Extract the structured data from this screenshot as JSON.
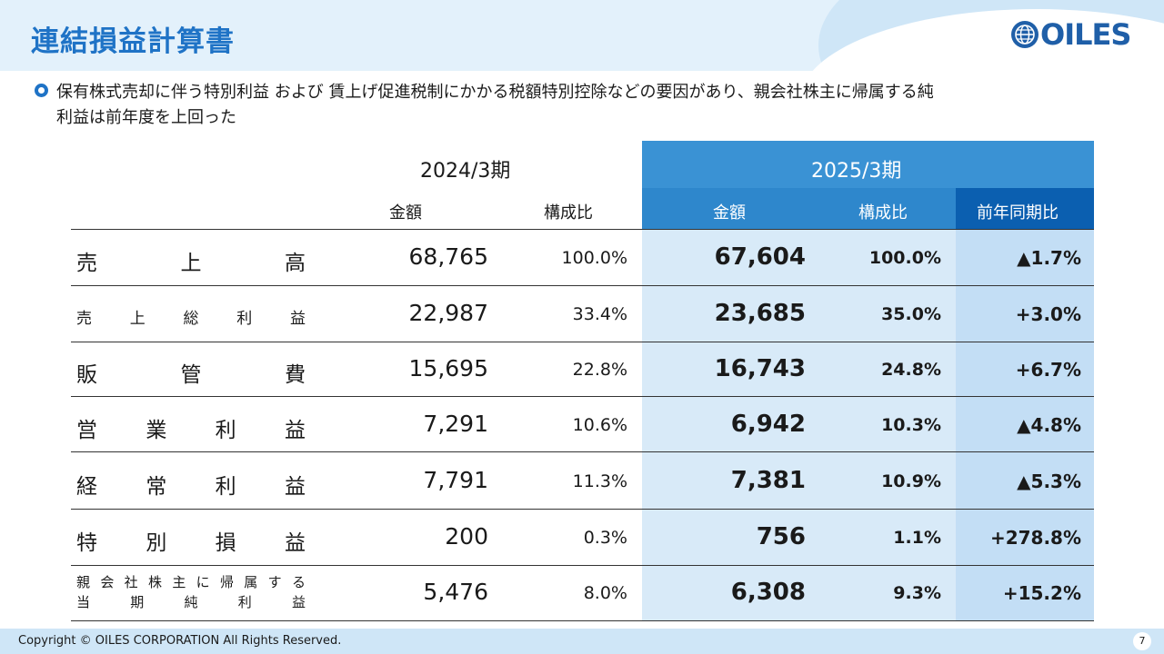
{
  "header": {
    "title": "連結損益計算書",
    "logo_text": "OILES"
  },
  "summary": {
    "line1": "保有株式売却に伴う特別利益 および 賃上げ促進税制にかかる税額特別控除などの要因があり、親会社株主に帰属する純",
    "line2": "利益は前年度を上回った"
  },
  "table": {
    "year_prev": "2024/3期",
    "year_curr": "2025/3期",
    "col_amount": "金額",
    "col_ratio": "構成比",
    "col_yoy": "前年同期比",
    "rows": [
      {
        "label_chars": [
          "売",
          "上",
          "高"
        ],
        "prev_amount": "68,765",
        "prev_ratio": "100.0%",
        "curr_amount": "67,604",
        "curr_ratio": "100.0%",
        "yoy": "▲1.7%"
      },
      {
        "label_chars": [
          "売",
          "上",
          "総",
          "利",
          "益"
        ],
        "prev_amount": "22,987",
        "prev_ratio": "33.4%",
        "curr_amount": "23,685",
        "curr_ratio": "35.0%",
        "yoy": "+3.0%"
      },
      {
        "label_chars": [
          "販",
          "管",
          "費"
        ],
        "prev_amount": "15,695",
        "prev_ratio": "22.8%",
        "curr_amount": "16,743",
        "curr_ratio": "24.8%",
        "yoy": "+6.7%"
      },
      {
        "label_chars": [
          "営",
          "業",
          "利",
          "益"
        ],
        "prev_amount": "7,291",
        "prev_ratio": "10.6%",
        "curr_amount": "6,942",
        "curr_ratio": "10.3%",
        "yoy": "▲4.8%"
      },
      {
        "label_chars": [
          "経",
          "常",
          "利",
          "益"
        ],
        "prev_amount": "7,791",
        "prev_ratio": "11.3%",
        "curr_amount": "7,381",
        "curr_ratio": "10.9%",
        "yoy": "▲5.3%"
      },
      {
        "label_chars": [
          "特",
          "別",
          "損",
          "益"
        ],
        "prev_amount": "200",
        "prev_ratio": "0.3%",
        "curr_amount": "756",
        "curr_ratio": "1.1%",
        "yoy": "+278.8%"
      },
      {
        "label_line1": [
          "親",
          "会",
          "社",
          "株",
          "主",
          "に",
          "帰",
          "属",
          "す",
          "る"
        ],
        "label_line2": [
          "当",
          "期",
          "純",
          "利",
          "益"
        ],
        "prev_amount": "5,476",
        "prev_ratio": "8.0%",
        "curr_amount": "6,308",
        "curr_ratio": "9.3%",
        "yoy": "+15.2%"
      }
    ]
  },
  "footer": {
    "copyright": "Copyright © OILES CORPORATION All Rights Reserved.",
    "page_number": "7"
  }
}
